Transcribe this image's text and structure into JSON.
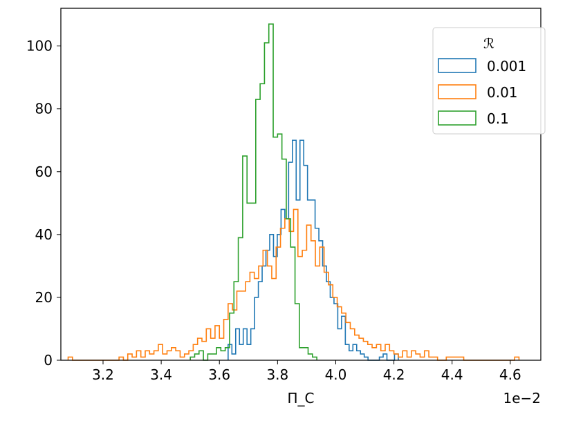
{
  "chart_data": {
    "type": "histogram",
    "xlabel": "Π_C",
    "ylabel": "",
    "x_offset_label": "1e−2",
    "xlim": [
      3.055,
      4.705
    ],
    "ylim": [
      0,
      112
    ],
    "x_ticks": [
      3.2,
      3.4,
      3.6,
      3.8,
      4.0,
      4.2,
      4.4,
      4.6
    ],
    "x_tick_labels": [
      "3.2",
      "3.4",
      "3.6",
      "3.8",
      "4.0",
      "4.2",
      "4.4",
      "4.6"
    ],
    "y_ticks": [
      0,
      20,
      40,
      60,
      80,
      100
    ],
    "y_tick_labels": [
      "0",
      "20",
      "40",
      "60",
      "80",
      "100"
    ],
    "grid": false,
    "legend": {
      "title": "ℛ",
      "placement": "top-right"
    },
    "series": [
      {
        "name": "0.001",
        "color": "#1f77b4",
        "bins": [
          [
            3.63,
            3.643,
            5
          ],
          [
            3.643,
            3.656,
            2
          ],
          [
            3.656,
            3.669,
            10
          ],
          [
            3.669,
            3.682,
            5
          ],
          [
            3.682,
            3.695,
            10
          ],
          [
            3.695,
            3.708,
            5
          ],
          [
            3.708,
            3.721,
            10
          ],
          [
            3.721,
            3.734,
            20
          ],
          [
            3.734,
            3.747,
            25
          ],
          [
            3.747,
            3.76,
            30
          ],
          [
            3.76,
            3.773,
            35
          ],
          [
            3.773,
            3.786,
            40
          ],
          [
            3.786,
            3.799,
            33
          ],
          [
            3.799,
            3.812,
            40
          ],
          [
            3.812,
            3.825,
            48
          ],
          [
            3.825,
            3.838,
            45
          ],
          [
            3.838,
            3.851,
            63
          ],
          [
            3.851,
            3.864,
            70
          ],
          [
            3.864,
            3.877,
            51
          ],
          [
            3.877,
            3.89,
            70
          ],
          [
            3.89,
            3.903,
            62
          ],
          [
            3.903,
            3.916,
            51
          ],
          [
            3.916,
            3.929,
            51
          ],
          [
            3.929,
            3.942,
            42
          ],
          [
            3.942,
            3.955,
            38
          ],
          [
            3.955,
            3.968,
            30
          ],
          [
            3.968,
            3.981,
            25
          ],
          [
            3.981,
            3.994,
            20
          ],
          [
            3.994,
            4.007,
            18
          ],
          [
            4.007,
            4.02,
            10
          ],
          [
            4.02,
            4.033,
            14
          ],
          [
            4.033,
            4.046,
            5
          ],
          [
            4.046,
            4.059,
            3
          ],
          [
            4.059,
            4.072,
            5
          ],
          [
            4.072,
            4.085,
            3
          ],
          [
            4.085,
            4.098,
            2
          ],
          [
            4.098,
            4.111,
            1
          ],
          [
            4.111,
            4.124,
            0
          ],
          [
            4.124,
            4.137,
            0
          ],
          [
            4.137,
            4.15,
            0
          ],
          [
            4.15,
            4.163,
            1
          ],
          [
            4.163,
            4.176,
            2
          ],
          [
            4.176,
            4.189,
            0
          ],
          [
            4.189,
            4.202,
            0
          ],
          [
            4.202,
            4.215,
            2
          ]
        ]
      },
      {
        "name": "0.01",
        "color": "#ff7f0e",
        "bins": [
          [
            3.08,
            3.095,
            1
          ],
          [
            3.095,
            3.255,
            0
          ],
          [
            3.255,
            3.27,
            1
          ],
          [
            3.27,
            3.285,
            0
          ],
          [
            3.285,
            3.3,
            2
          ],
          [
            3.3,
            3.315,
            1
          ],
          [
            3.315,
            3.33,
            3
          ],
          [
            3.33,
            3.345,
            1
          ],
          [
            3.345,
            3.36,
            3
          ],
          [
            3.36,
            3.375,
            2
          ],
          [
            3.375,
            3.39,
            3
          ],
          [
            3.39,
            3.405,
            5
          ],
          [
            3.405,
            3.42,
            2
          ],
          [
            3.42,
            3.435,
            3
          ],
          [
            3.435,
            3.45,
            4
          ],
          [
            3.45,
            3.465,
            3
          ],
          [
            3.465,
            3.48,
            1
          ],
          [
            3.48,
            3.495,
            2
          ],
          [
            3.495,
            3.51,
            3
          ],
          [
            3.51,
            3.525,
            5
          ],
          [
            3.525,
            3.54,
            7
          ],
          [
            3.54,
            3.555,
            6
          ],
          [
            3.555,
            3.57,
            10
          ],
          [
            3.57,
            3.585,
            7
          ],
          [
            3.585,
            3.6,
            11
          ],
          [
            3.6,
            3.615,
            7
          ],
          [
            3.615,
            3.63,
            13
          ],
          [
            3.63,
            3.645,
            18
          ],
          [
            3.645,
            3.66,
            16
          ],
          [
            3.66,
            3.675,
            22
          ],
          [
            3.675,
            3.69,
            22
          ],
          [
            3.69,
            3.705,
            25
          ],
          [
            3.705,
            3.72,
            28
          ],
          [
            3.72,
            3.735,
            26
          ],
          [
            3.735,
            3.75,
            30
          ],
          [
            3.75,
            3.765,
            35
          ],
          [
            3.765,
            3.78,
            30
          ],
          [
            3.78,
            3.795,
            26
          ],
          [
            3.795,
            3.81,
            36
          ],
          [
            3.81,
            3.825,
            42
          ],
          [
            3.825,
            3.84,
            45
          ],
          [
            3.84,
            3.855,
            41
          ],
          [
            3.855,
            3.87,
            48
          ],
          [
            3.87,
            3.885,
            33
          ],
          [
            3.885,
            3.9,
            35
          ],
          [
            3.9,
            3.915,
            43
          ],
          [
            3.915,
            3.93,
            38
          ],
          [
            3.93,
            3.945,
            30
          ],
          [
            3.945,
            3.96,
            36
          ],
          [
            3.96,
            3.975,
            28
          ],
          [
            3.975,
            3.99,
            24
          ],
          [
            3.99,
            4.005,
            20
          ],
          [
            4.005,
            4.02,
            17
          ],
          [
            4.02,
            4.035,
            15
          ],
          [
            4.035,
            4.05,
            12
          ],
          [
            4.05,
            4.065,
            10
          ],
          [
            4.065,
            4.08,
            8
          ],
          [
            4.08,
            4.095,
            7
          ],
          [
            4.095,
            4.11,
            6
          ],
          [
            4.11,
            4.125,
            5
          ],
          [
            4.125,
            4.14,
            4
          ],
          [
            4.14,
            4.155,
            5
          ],
          [
            4.155,
            4.17,
            3
          ],
          [
            4.17,
            4.185,
            5
          ],
          [
            4.185,
            4.2,
            3
          ],
          [
            4.2,
            4.215,
            2
          ],
          [
            4.215,
            4.23,
            1
          ],
          [
            4.23,
            4.245,
            3
          ],
          [
            4.245,
            4.26,
            1
          ],
          [
            4.26,
            4.275,
            3
          ],
          [
            4.275,
            4.29,
            2
          ],
          [
            4.29,
            4.305,
            1
          ],
          [
            4.305,
            4.32,
            3
          ],
          [
            4.32,
            4.335,
            1
          ],
          [
            4.335,
            4.35,
            1
          ],
          [
            4.35,
            4.365,
            0
          ],
          [
            4.365,
            4.38,
            0
          ],
          [
            4.38,
            4.395,
            1
          ],
          [
            4.395,
            4.41,
            1
          ],
          [
            4.41,
            4.425,
            1
          ],
          [
            4.425,
            4.44,
            1
          ],
          [
            4.44,
            4.615,
            0
          ],
          [
            4.615,
            4.63,
            1
          ]
        ]
      },
      {
        "name": "0.1",
        "color": "#2ca02c",
        "bins": [
          [
            3.5,
            3.515,
            1
          ],
          [
            3.515,
            3.53,
            2
          ],
          [
            3.53,
            3.545,
            3
          ],
          [
            3.545,
            3.56,
            0
          ],
          [
            3.56,
            3.575,
            2
          ],
          [
            3.575,
            3.59,
            2
          ],
          [
            3.59,
            3.605,
            4
          ],
          [
            3.605,
            3.62,
            3
          ],
          [
            3.62,
            3.635,
            4
          ],
          [
            3.635,
            3.65,
            15
          ],
          [
            3.65,
            3.665,
            25
          ],
          [
            3.665,
            3.68,
            39
          ],
          [
            3.68,
            3.695,
            65
          ],
          [
            3.695,
            3.71,
            50
          ],
          [
            3.71,
            3.725,
            50
          ],
          [
            3.725,
            3.74,
            83
          ],
          [
            3.74,
            3.755,
            88
          ],
          [
            3.755,
            3.77,
            101
          ],
          [
            3.77,
            3.785,
            107
          ],
          [
            3.785,
            3.8,
            71
          ],
          [
            3.8,
            3.815,
            72
          ],
          [
            3.815,
            3.83,
            64
          ],
          [
            3.83,
            3.845,
            45
          ],
          [
            3.845,
            3.86,
            36
          ],
          [
            3.86,
            3.875,
            18
          ],
          [
            3.875,
            3.89,
            4
          ],
          [
            3.89,
            3.905,
            4
          ],
          [
            3.905,
            3.92,
            2
          ],
          [
            3.92,
            3.935,
            1
          ]
        ]
      }
    ]
  }
}
